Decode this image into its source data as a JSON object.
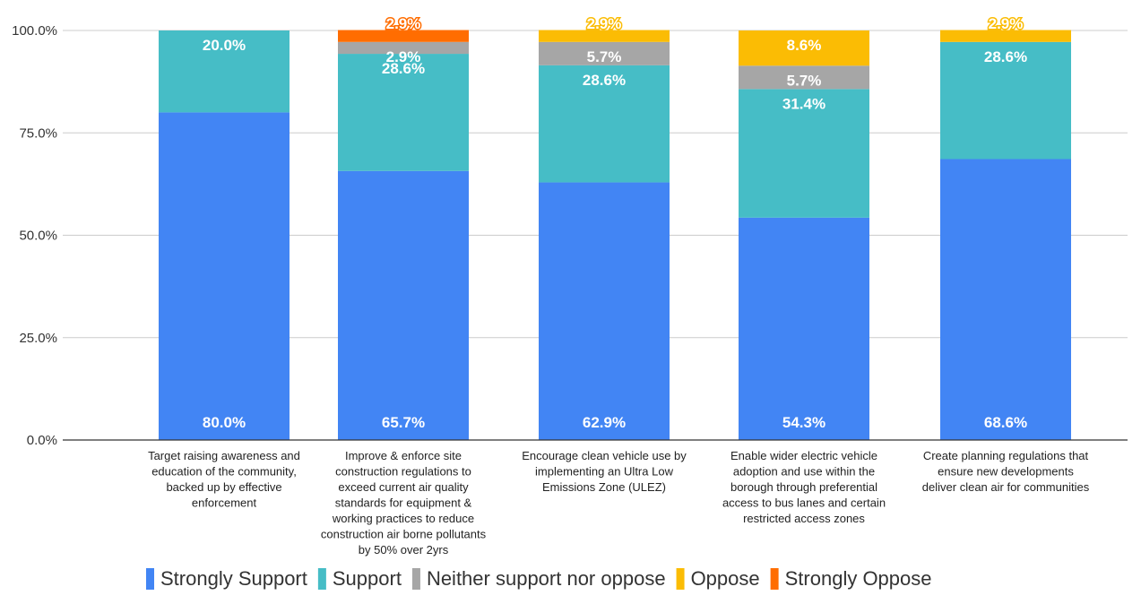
{
  "chart_data": {
    "type": "bar",
    "stacked": true,
    "categories": [
      [
        "Target raising awareness and",
        "education of the community,",
        "backed up by effective",
        "enforcement"
      ],
      [
        "Improve & enforce site",
        "construction regulations to",
        "exceed current air quality",
        "standards for equipment &",
        "working practices to reduce",
        "construction air borne pollutants",
        "by 50% over 2yrs"
      ],
      [
        "Encourage clean vehicle use by",
        "implementing an Ultra Low",
        "Emissions Zone (ULEZ)"
      ],
      [
        "Enable wider electric vehicle",
        "adoption and use within the",
        "borough through preferential",
        "access to bus lanes and certain",
        "restricted access zones"
      ],
      [
        "Create planning regulations that",
        "ensure new developments",
        "deliver clean air for communities"
      ]
    ],
    "series": [
      {
        "name": "Strongly Support",
        "color": "#4285f4",
        "values": [
          80.0,
          65.7,
          62.9,
          54.3,
          68.6
        ],
        "labels": [
          "80.0%",
          "65.7%",
          "62.9%",
          "54.3%",
          "68.6%"
        ]
      },
      {
        "name": "Support",
        "color": "#46bdc6",
        "values": [
          20.0,
          28.6,
          28.6,
          31.4,
          28.6
        ],
        "labels": [
          "20.0%",
          "28.6%",
          "28.6%",
          "31.4%",
          "28.6%"
        ]
      },
      {
        "name": "Neither support nor oppose",
        "color": "#a6a6a6",
        "values": [
          0,
          2.9,
          5.7,
          5.7,
          0
        ],
        "labels": [
          "",
          "2.9%",
          "5.7%",
          "5.7%",
          ""
        ]
      },
      {
        "name": "Oppose",
        "color": "#fbbc04",
        "values": [
          0,
          0,
          2.9,
          8.6,
          2.9
        ],
        "labels": [
          "",
          "",
          "2.9%",
          "8.6%",
          "2.9%"
        ]
      },
      {
        "name": "Strongly Oppose",
        "color": "#ff6d01",
        "values": [
          0,
          2.9,
          0,
          0,
          0
        ],
        "labels": [
          "",
          "2.9%",
          "",
          "",
          ""
        ]
      }
    ],
    "yticks": [
      "0.0%",
      "25.0%",
      "50.0%",
      "75.0%",
      "100.0%"
    ],
    "ylim": [
      0,
      100
    ],
    "grid": true,
    "legend": "bottom",
    "title": "",
    "xlabel": "",
    "ylabel": ""
  }
}
